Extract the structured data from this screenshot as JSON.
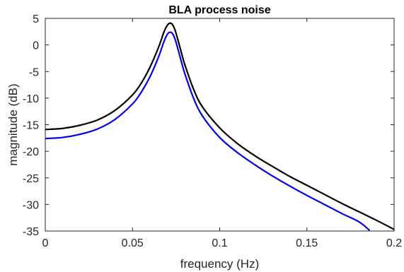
{
  "chart_data": {
    "type": "line",
    "title": "BLA process noise",
    "xlabel": "frequency (Hz)",
    "ylabel": "magnitude (dB)",
    "xlim": [
      0,
      0.2
    ],
    "ylim": [
      -35,
      5
    ],
    "xticks": [
      0,
      0.05,
      0.1,
      0.15,
      0.2
    ],
    "xtick_labels": [
      "0",
      "0.05",
      "0.1",
      "0.15",
      "0.2"
    ],
    "yticks": [
      5,
      0,
      -5,
      -10,
      -15,
      -20,
      -25,
      -30,
      -35
    ],
    "ytick_labels": [
      "5",
      "0",
      "-5",
      "-10",
      "-15",
      "-20",
      "-25",
      "-30",
      "-35"
    ],
    "grid": false,
    "legend": "none",
    "series": [
      {
        "color": "#000000",
        "x": [
          0,
          0.01,
          0.02,
          0.03,
          0.04,
          0.05,
          0.055,
          0.06,
          0.065,
          0.068,
          0.07,
          0.0715,
          0.073,
          0.0745,
          0.076,
          0.078,
          0.08,
          0.085,
          0.09,
          0.1,
          0.11,
          0.12,
          0.13,
          0.14,
          0.15,
          0.16,
          0.17,
          0.18,
          0.19,
          0.2
        ],
        "y": [
          -15.9,
          -15.7,
          -15.1,
          -14.1,
          -12.3,
          -9.4,
          -7.2,
          -4.2,
          -0.4,
          2.4,
          3.7,
          4.1,
          3.8,
          2.7,
          1.0,
          -1.4,
          -3.7,
          -8.3,
          -11.6,
          -15.6,
          -18.5,
          -20.8,
          -22.8,
          -24.7,
          -26.4,
          -28.1,
          -29.8,
          -31.4,
          -33.0,
          -34.7
        ]
      },
      {
        "color": "#0000ee",
        "x": [
          0,
          0.01,
          0.02,
          0.03,
          0.04,
          0.05,
          0.055,
          0.06,
          0.065,
          0.068,
          0.07,
          0.0715,
          0.073,
          0.0745,
          0.076,
          0.078,
          0.08,
          0.085,
          0.09,
          0.1,
          0.11,
          0.12,
          0.13,
          0.14,
          0.15,
          0.16,
          0.17,
          0.18,
          0.186
        ],
        "y": [
          -17.6,
          -17.4,
          -16.8,
          -15.8,
          -14.0,
          -11.1,
          -8.9,
          -6.0,
          -2.2,
          0.6,
          2.0,
          2.4,
          2.1,
          1.0,
          -0.7,
          -3.1,
          -5.4,
          -10.0,
          -13.3,
          -17.4,
          -20.2,
          -22.5,
          -24.6,
          -26.5,
          -28.3,
          -30.0,
          -31.7,
          -33.3,
          -34.9
        ]
      }
    ]
  }
}
